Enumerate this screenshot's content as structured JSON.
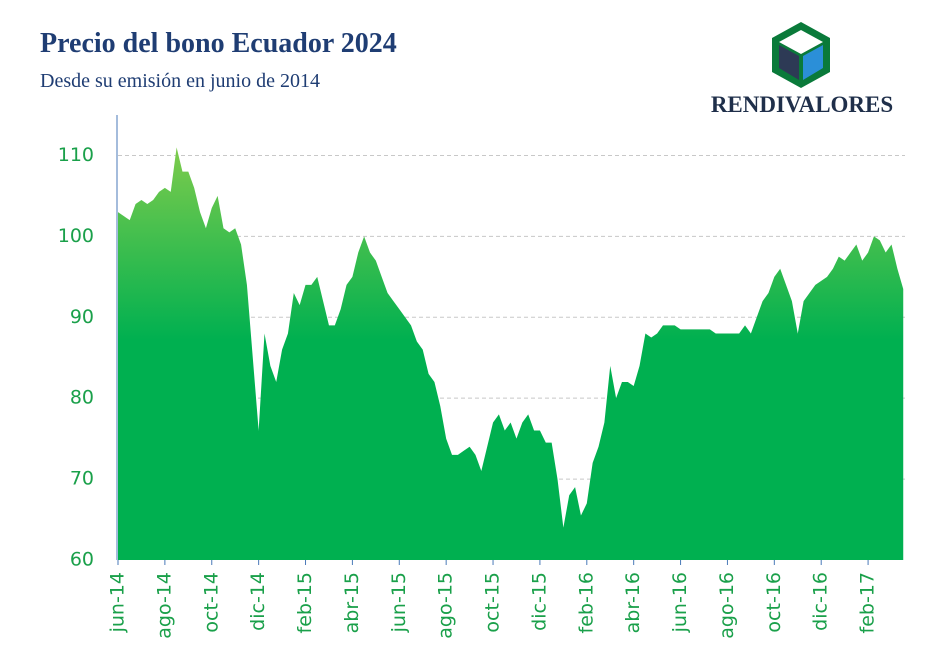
{
  "chart_data": {
    "type": "area",
    "title": "Precio del bono Ecuador 2024",
    "subtitle": "Desde su emisión en junio de 2014",
    "logo_text": "RENDIVALORES",
    "color": "#00b050",
    "gradient_top_color": "#7fcc4c",
    "categories": [
      "jun-14",
      null,
      null,
      null,
      null,
      null,
      null,
      null,
      "ago-14",
      null,
      null,
      null,
      null,
      null,
      null,
      null,
      "oct-14",
      null,
      null,
      null,
      null,
      null,
      null,
      null,
      "dic-14",
      null,
      null,
      null,
      null,
      null,
      null,
      null,
      "feb-15",
      null,
      null,
      null,
      null,
      null,
      null,
      null,
      "abr-15",
      null,
      null,
      null,
      null,
      null,
      null,
      null,
      "jun-15",
      null,
      null,
      null,
      null,
      null,
      null,
      null,
      "ago-15",
      null,
      null,
      null,
      null,
      null,
      null,
      null,
      "oct-15",
      null,
      null,
      null,
      null,
      null,
      null,
      null,
      "dic-15",
      null,
      null,
      null,
      null,
      null,
      null,
      null,
      "feb-16",
      null,
      null,
      null,
      null,
      null,
      null,
      null,
      "abr-16",
      null,
      null,
      null,
      null,
      null,
      null,
      null,
      "jun-16",
      null,
      null,
      null,
      null,
      null,
      null,
      null,
      "ago-16",
      null,
      null,
      null,
      null,
      null,
      null,
      null,
      "oct-16",
      null,
      null,
      null,
      null,
      null,
      null,
      null,
      "dic-16",
      null,
      null,
      null,
      null,
      null,
      null,
      null,
      "feb-17",
      null,
      null,
      null,
      null,
      null,
      null
    ],
    "values": [
      103,
      102.5,
      102,
      104,
      104.5,
      104,
      104.5,
      105.5,
      106,
      105.5,
      111,
      108,
      108,
      106,
      103,
      101,
      103.5,
      105,
      101,
      100.5,
      101,
      99,
      94,
      85,
      76,
      88,
      84,
      82,
      86,
      88,
      93,
      91.5,
      94,
      94,
      95,
      92,
      89,
      89,
      91,
      94,
      95,
      98,
      100,
      98,
      97,
      95,
      93,
      92,
      91,
      90,
      89,
      87,
      86,
      83,
      82,
      79,
      75,
      73,
      73,
      73.5,
      74,
      73,
      71,
      74,
      77,
      78,
      76,
      77,
      75,
      77,
      78,
      76,
      76,
      74.5,
      74.5,
      70,
      64,
      68,
      69,
      65.5,
      67,
      72,
      74,
      77,
      84,
      80,
      82,
      82,
      81.5,
      84,
      88,
      87.5,
      88,
      89,
      89,
      89,
      88.5,
      88.5,
      88.5,
      88.5,
      88.5,
      88.5,
      88,
      88,
      88,
      88,
      88,
      89,
      88,
      90,
      92,
      93,
      95,
      96,
      94,
      92,
      88,
      92,
      93,
      94,
      94.5,
      95,
      96,
      97.5,
      97,
      98,
      99,
      97,
      98,
      100,
      99.5,
      98,
      99,
      96,
      93.5
    ],
    "ylim": [
      60,
      115
    ],
    "yticks": [
      60,
      70,
      80,
      90,
      100,
      110
    ],
    "grid": true
  }
}
